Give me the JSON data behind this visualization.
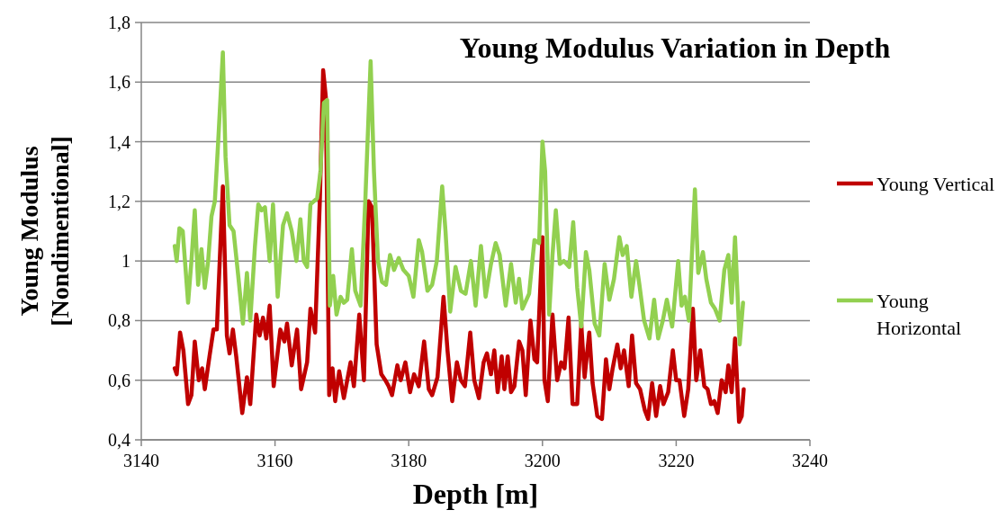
{
  "chart_data": {
    "type": "line",
    "title": "Young Modulus Variation in Depth",
    "xlabel": "Depth [m]",
    "ylabel": "Young Modulus [Nondimentional]",
    "xlim": [
      3140,
      3240
    ],
    "xticks": [
      3140,
      3160,
      3180,
      3200,
      3220,
      3240
    ],
    "ylim": [
      0.4,
      1.8
    ],
    "yticks": [
      {
        "value": 0.4,
        "label": "0,4"
      },
      {
        "value": 0.6,
        "label": "0,6"
      },
      {
        "value": 0.8,
        "label": "0,8"
      },
      1,
      {
        "value": 1.2,
        "label": "1,2"
      },
      {
        "value": 1.4,
        "label": "1,4"
      },
      {
        "value": 1.6,
        "label": "1,6"
      },
      {
        "value": 1.8,
        "label": "1,8"
      }
    ],
    "grid": "y",
    "legend": "right",
    "marker": "none",
    "line_style": "solid",
    "series": [
      {
        "name": "Young Vertical",
        "color": "#c00000",
        "x": [
          3145,
          3145.3,
          3145.8,
          3146.3,
          3147,
          3147.5,
          3148,
          3148.6,
          3149.1,
          3149.5,
          3150.2,
          3150.8,
          3151.3,
          3152.2,
          3152.8,
          3153.2,
          3153.7,
          3154.2,
          3155.1,
          3155.8,
          3156.3,
          3157.2,
          3157.7,
          3158.2,
          3158.7,
          3159.2,
          3159.8,
          3160.8,
          3161.4,
          3161.8,
          3162.5,
          3163.3,
          3163.9,
          3164.8,
          3165.3,
          3166,
          3166.7,
          3167.2,
          3167.6,
          3168.1,
          3168.6,
          3169,
          3169.6,
          3170.3,
          3171.3,
          3171.8,
          3172.6,
          3173.3,
          3174,
          3174.5,
          3175.2,
          3175.9,
          3176.5,
          3177,
          3177.5,
          3178.3,
          3178.8,
          3179.5,
          3180.2,
          3180.8,
          3181.5,
          3182.3,
          3183,
          3183.5,
          3184.3,
          3185.2,
          3185.8,
          3186.5,
          3187.2,
          3187.8,
          3188.4,
          3189.2,
          3189.8,
          3190.5,
          3191.2,
          3191.7,
          3192.3,
          3192.8,
          3193.3,
          3193.9,
          3194.3,
          3194.8,
          3195.3,
          3195.8,
          3196.5,
          3197,
          3197.5,
          3198.2,
          3198.8,
          3199.2,
          3200,
          3200.3,
          3200.8,
          3201.5,
          3202.2,
          3202.8,
          3203.3,
          3203.9,
          3204.5,
          3205.2,
          3205.8,
          3206.3,
          3207,
          3207.5,
          3208.2,
          3208.9,
          3209.5,
          3210,
          3210.5,
          3211.2,
          3211.7,
          3212.2,
          3212.9,
          3213.4,
          3214,
          3214.6,
          3215.3,
          3215.8,
          3216.4,
          3217,
          3217.6,
          3218.1,
          3218.8,
          3219.5,
          3220,
          3220.5,
          3221.2,
          3221.8,
          3222.5,
          3223,
          3223.6,
          3224.2,
          3224.7,
          3225.2,
          3225.7,
          3226.2,
          3226.8,
          3227.4,
          3227.8,
          3228.3,
          3228.8,
          3229.4,
          3229.8,
          3230.1
        ],
        "values": [
          0.64,
          0.62,
          0.76,
          0.7,
          0.52,
          0.55,
          0.73,
          0.6,
          0.64,
          0.57,
          0.68,
          0.77,
          0.77,
          1.25,
          0.75,
          0.69,
          0.77,
          0.68,
          0.49,
          0.61,
          0.52,
          0.82,
          0.75,
          0.81,
          0.74,
          0.85,
          0.58,
          0.77,
          0.73,
          0.79,
          0.65,
          0.77,
          0.57,
          0.66,
          0.84,
          0.76,
          1.2,
          1.64,
          1.55,
          0.55,
          0.64,
          0.53,
          0.63,
          0.54,
          0.66,
          0.58,
          0.82,
          0.6,
          1.2,
          1.18,
          0.72,
          0.62,
          0.6,
          0.58,
          0.55,
          0.65,
          0.6,
          0.66,
          0.56,
          0.62,
          0.58,
          0.73,
          0.57,
          0.55,
          0.61,
          0.88,
          0.7,
          0.53,
          0.66,
          0.6,
          0.58,
          0.76,
          0.6,
          0.54,
          0.66,
          0.69,
          0.62,
          0.7,
          0.56,
          0.68,
          0.57,
          0.68,
          0.56,
          0.58,
          0.73,
          0.7,
          0.55,
          0.8,
          0.67,
          0.66,
          1.08,
          0.6,
          0.53,
          0.82,
          0.6,
          0.66,
          0.64,
          0.81,
          0.52,
          0.52,
          0.79,
          0.61,
          0.76,
          0.59,
          0.48,
          0.47,
          0.67,
          0.57,
          0.64,
          0.72,
          0.64,
          0.7,
          0.58,
          0.75,
          0.59,
          0.57,
          0.5,
          0.47,
          0.59,
          0.48,
          0.58,
          0.52,
          0.56,
          0.7,
          0.6,
          0.6,
          0.48,
          0.57,
          0.84,
          0.6,
          0.7,
          0.58,
          0.57,
          0.52,
          0.53,
          0.49,
          0.6,
          0.56,
          0.65,
          0.56,
          0.74,
          0.46,
          0.48,
          0.57
        ]
      },
      {
        "name": "Young Horizontal",
        "color": "#92d050",
        "x": [
          3145,
          3145.3,
          3145.7,
          3146.2,
          3147,
          3147.5,
          3148,
          3148.5,
          3149,
          3149.5,
          3150,
          3150.5,
          3151,
          3151.5,
          3152.2,
          3152.6,
          3153.2,
          3153.8,
          3154.5,
          3155.2,
          3155.8,
          3156.3,
          3157,
          3157.5,
          3158,
          3158.5,
          3159.2,
          3159.7,
          3160.4,
          3161.2,
          3161.8,
          3162.5,
          3163.2,
          3163.8,
          3164.3,
          3164.8,
          3165.3,
          3166.3,
          3166.8,
          3167.3,
          3167.8,
          3168.2,
          3168.7,
          3169.2,
          3169.8,
          3170.3,
          3170.8,
          3171.5,
          3172,
          3172.8,
          3173.5,
          3174.3,
          3174.8,
          3175.4,
          3176,
          3176.6,
          3177.2,
          3177.8,
          3178.5,
          3179.2,
          3180,
          3180.7,
          3181.5,
          3182,
          3182.8,
          3183.5,
          3184.2,
          3185,
          3185.5,
          3186.2,
          3187,
          3187.8,
          3188.5,
          3189.3,
          3190,
          3190.8,
          3191.5,
          3192.3,
          3193,
          3193.6,
          3194.5,
          3195.3,
          3196,
          3196.5,
          3197,
          3198,
          3198.8,
          3199.5,
          3200,
          3200.4,
          3201,
          3201.5,
          3202,
          3202.6,
          3203.2,
          3204,
          3204.6,
          3205.2,
          3205.8,
          3206.5,
          3207,
          3207.8,
          3208.5,
          3209.3,
          3210,
          3210.7,
          3211.5,
          3212,
          3212.6,
          3213.3,
          3214,
          3214.5,
          3215.2,
          3216,
          3216.7,
          3217.3,
          3218,
          3218.6,
          3219.4,
          3220.3,
          3220.8,
          3221.3,
          3221.9,
          3222.8,
          3223.3,
          3224,
          3224.5,
          3225.2,
          3225.8,
          3226.5,
          3227.2,
          3227.8,
          3228.3,
          3228.8,
          3229.5,
          3230
        ],
        "values": [
          1.05,
          1.0,
          1.11,
          1.1,
          0.86,
          1.0,
          1.17,
          0.92,
          1.04,
          0.91,
          1.0,
          1.15,
          1.2,
          1.4,
          1.7,
          1.35,
          1.12,
          1.1,
          0.95,
          0.79,
          0.96,
          0.8,
          1.05,
          1.19,
          1.17,
          1.18,
          1.0,
          1.19,
          0.88,
          1.12,
          1.16,
          1.1,
          1.0,
          1.14,
          1.0,
          0.98,
          1.19,
          1.21,
          1.3,
          1.53,
          1.54,
          0.85,
          0.95,
          0.82,
          0.88,
          0.86,
          0.87,
          1.04,
          0.9,
          0.85,
          1.2,
          1.67,
          1.3,
          1.0,
          0.93,
          0.92,
          1.02,
          0.97,
          1.01,
          0.97,
          0.95,
          0.88,
          1.07,
          1.03,
          0.9,
          0.92,
          1.0,
          1.25,
          1.1,
          0.83,
          0.98,
          0.9,
          0.89,
          1.0,
          0.85,
          1.05,
          0.88,
          0.99,
          1.06,
          1.02,
          0.85,
          0.99,
          0.86,
          0.94,
          0.84,
          0.89,
          1.07,
          1.06,
          1.4,
          1.3,
          0.82,
          1.02,
          1.17,
          0.99,
          1.0,
          0.98,
          1.13,
          0.91,
          0.78,
          1.03,
          0.97,
          0.79,
          0.75,
          0.99,
          0.87,
          0.94,
          1.08,
          1.02,
          1.05,
          0.88,
          1.0,
          0.92,
          0.8,
          0.74,
          0.87,
          0.74,
          0.8,
          0.87,
          0.78,
          1.0,
          0.85,
          0.88,
          0.8,
          1.24,
          0.96,
          1.03,
          0.94,
          0.86,
          0.84,
          0.8,
          0.97,
          1.02,
          0.86,
          1.08,
          0.72,
          0.86
        ]
      }
    ]
  }
}
